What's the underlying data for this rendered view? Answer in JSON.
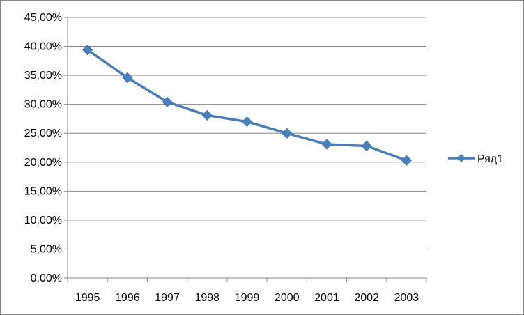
{
  "chart_data": {
    "type": "line",
    "title": "",
    "xlabel": "",
    "ylabel": "",
    "categories": [
      "1995",
      "1996",
      "1997",
      "1998",
      "1999",
      "2000",
      "2001",
      "2002",
      "2003"
    ],
    "series": [
      {
        "name": "Ряд1",
        "color": "#4A7EBB",
        "marker": "diamond",
        "values": [
          39.4,
          34.6,
          30.4,
          28.1,
          27.0,
          25.0,
          23.1,
          22.8,
          20.3
        ]
      }
    ],
    "ylim": [
      0,
      45
    ],
    "y_ticks": [
      0,
      5,
      10,
      15,
      20,
      25,
      30,
      35,
      40,
      45
    ],
    "y_tick_labels": [
      "0,00%",
      "5,00%",
      "10,00%",
      "15,00%",
      "20,00%",
      "25,00%",
      "30,00%",
      "35,00%",
      "40,00%",
      "45,00%"
    ],
    "y_unit": "percent",
    "grid": true,
    "legend_position": "right",
    "gridline_color": "#868686",
    "axis_color": "#868686"
  }
}
